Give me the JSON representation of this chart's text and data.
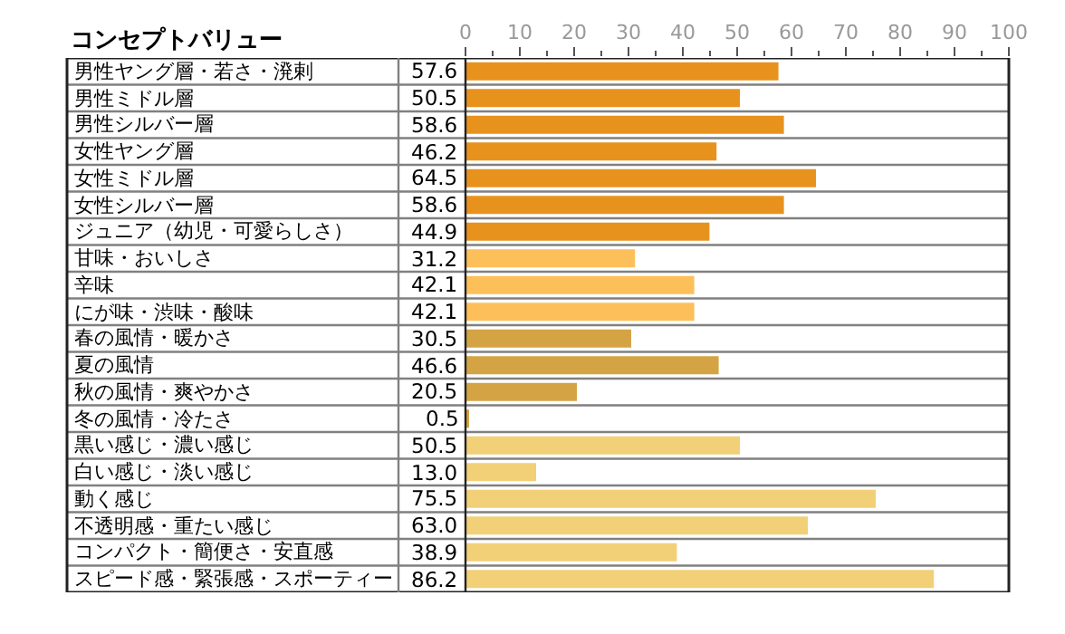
{
  "chart_data": {
    "type": "bar",
    "orientation": "horizontal",
    "title": "コンセプトバリュー",
    "categories": [
      "男性ヤング層・若さ・溌剌",
      "男性ミドル層",
      "男性シルバー層",
      "女性ヤング層",
      "女性ミドル層",
      "女性シルバー層",
      "ジュニア（幼児・可愛らしさ）",
      "甘味・おいしさ",
      "辛味",
      "にが味・渋味・酸味",
      "春の風情・暖かさ",
      "夏の風情",
      "秋の風情・爽やかさ",
      "冬の風情・冷たさ",
      "黒い感じ・濃い感じ",
      "白い感じ・淡い感じ",
      "動く感じ",
      "不透明感・重たい感じ",
      "コンパクト・簡便さ・安直感",
      "スピード感・緊張感・スポーティー"
    ],
    "values": [
      57.6,
      50.5,
      58.6,
      46.2,
      64.5,
      58.6,
      44.9,
      31.2,
      42.1,
      42.1,
      30.5,
      46.6,
      20.5,
      0.5,
      50.5,
      13.0,
      75.5,
      63.0,
      38.9,
      86.2
    ],
    "value_labels": [
      "57.6",
      "50.5",
      "58.6",
      "46.2",
      "64.5",
      "58.6",
      "44.9",
      "31.2",
      "42.1",
      "42.1",
      "30.5",
      "46.6",
      "20.5",
      "0.5",
      "50.5",
      "13.0",
      "75.5",
      "63.0",
      "38.9",
      "86.2"
    ],
    "colors": [
      "#e8921e",
      "#e8921e",
      "#e8921e",
      "#e8921e",
      "#e8921e",
      "#e8921e",
      "#e8921e",
      "#fdbf5a",
      "#fdbf5a",
      "#fdbf5a",
      "#d4a444",
      "#d4a444",
      "#d4a444",
      "#d4a444",
      "#f2d078",
      "#f2d078",
      "#f2d078",
      "#f2d078",
      "#f2d078",
      "#f2d078"
    ],
    "xlim": [
      0,
      100
    ],
    "xticks": [
      0,
      10,
      20,
      30,
      40,
      50,
      60,
      70,
      80,
      90,
      100
    ],
    "tick_labels": "x"
  }
}
